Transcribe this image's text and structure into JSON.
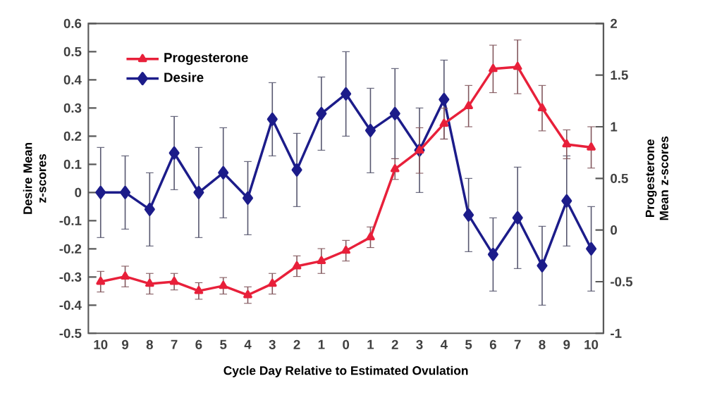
{
  "chart_data": {
    "type": "line",
    "xlabel": "Cycle Day Relative to Estimated Ovulation",
    "ylabel": "Desire Mean z-scores",
    "y2label": "Progesterone Mean z-scores",
    "categories": [
      "10",
      "9",
      "8",
      "7",
      "6",
      "5",
      "4",
      "3",
      "2",
      "1",
      "0",
      "1",
      "2",
      "3",
      "4",
      "5",
      "6",
      "7",
      "8",
      "9",
      "10"
    ],
    "series": [
      {
        "name": "Progesterone",
        "color": "#e8203a",
        "axis": "y2",
        "marker": "triangle",
        "values": [
          -0.5,
          -0.45,
          -0.52,
          -0.5,
          -0.59,
          -0.54,
          -0.63,
          -0.52,
          -0.35,
          -0.3,
          -0.2,
          -0.07,
          0.59,
          0.77,
          1.03,
          1.2,
          1.56,
          1.58,
          1.18,
          0.83,
          0.8
        ],
        "errors": [
          0.1,
          0.1,
          0.1,
          0.08,
          0.08,
          0.08,
          0.08,
          0.1,
          0.1,
          0.12,
          0.1,
          0.1,
          0.1,
          0.22,
          0.15,
          0.2,
          0.23,
          0.26,
          0.22,
          0.14,
          0.2
        ]
      },
      {
        "name": "Desire",
        "color": "#1c1c8a",
        "marker": "diamond",
        "values": [
          0.0,
          0.0,
          -0.06,
          0.14,
          0.0,
          0.07,
          -0.02,
          0.26,
          0.08,
          0.28,
          0.35,
          0.22,
          0.28,
          0.15,
          0.33,
          -0.08,
          -0.22,
          -0.09,
          -0.26,
          -0.03,
          -0.2
        ],
        "errors": [
          0.16,
          0.13,
          0.13,
          0.13,
          0.16,
          0.16,
          0.13,
          0.13,
          0.13,
          0.13,
          0.15,
          0.15,
          0.16,
          0.15,
          0.14,
          0.13,
          0.13,
          0.18,
          0.14,
          0.16,
          0.15
        ]
      }
    ],
    "ylim": [
      -0.5,
      0.6
    ],
    "yticks": [
      -0.5,
      -0.4,
      -0.3,
      -0.2,
      -0.1,
      0,
      0.1,
      0.2,
      0.3,
      0.4,
      0.5,
      0.6
    ],
    "y2lim": [
      -1,
      2
    ],
    "y2ticks": [
      -1,
      -0.5,
      0,
      0.5,
      1,
      1.5,
      2
    ],
    "legend": "top left"
  }
}
